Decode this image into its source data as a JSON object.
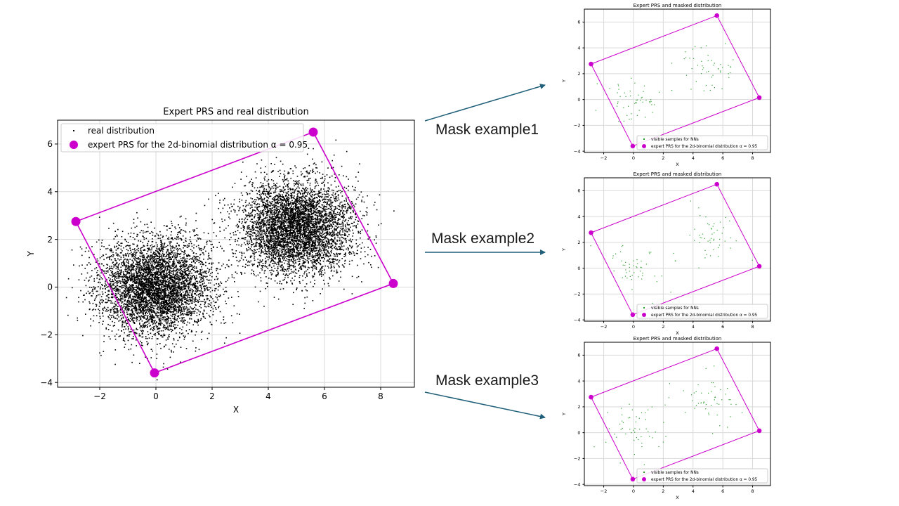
{
  "colors": {
    "polygon": "#cc00cc",
    "real_points": "#000000",
    "visible_points": "#2ca02c",
    "arrow": "#1f5f7a",
    "grid": "#d9d9d9"
  },
  "chart_data": [
    {
      "type": "scatter",
      "title": "Expert PRS and real distribution",
      "xlabel": "X",
      "ylabel": "Y",
      "xlim": [
        -3.5,
        9.2
      ],
      "ylim": [
        -4.2,
        7.0
      ],
      "xticks": [
        -2,
        0,
        2,
        4,
        6,
        8
      ],
      "yticks": [
        -4,
        -2,
        0,
        2,
        4,
        6
      ],
      "grid": true,
      "legend_position": "top-left",
      "legend": [
        {
          "label": "real distribution",
          "marker": "dot",
          "color": "#000000"
        },
        {
          "label": "expert PRS for the 2d-binomial distribution α = 0.95",
          "marker": "circle",
          "color": "#cc00cc"
        }
      ],
      "series": [
        {
          "name": "real distribution",
          "kind": "points",
          "clusters": [
            {
              "center": [
                0,
                0
              ],
              "sd": 1
            },
            {
              "center": [
                5,
                2.5
              ],
              "sd": 1
            }
          ],
          "count": 10000
        },
        {
          "name": "expert PRS for the 2d-binomial distribution α = 0.95",
          "kind": "polygon",
          "vertices": [
            [
              -2.85,
              2.75
            ],
            [
              5.6,
              6.5
            ],
            [
              8.45,
              0.15
            ],
            [
              -0.05,
              -3.6
            ]
          ]
        }
      ]
    },
    {
      "type": "scatter",
      "title": "Expert PRS and masked distribution",
      "xlabel": "X",
      "ylabel": "Y",
      "xlim": [
        -3.3,
        9.2
      ],
      "ylim": [
        -4.1,
        7.0
      ],
      "xticks": [
        -2,
        0,
        2,
        4,
        6,
        8
      ],
      "yticks": [
        -4,
        -2,
        0,
        2,
        4,
        6
      ],
      "grid": true,
      "legend_position": "bottom-right",
      "legend": [
        {
          "label": "visible samples for NNs",
          "marker": "dot",
          "color": "#2ca02c"
        },
        {
          "label": "expert PRS for the 2d-binomial distribution α = 0.95",
          "marker": "circle",
          "color": "#cc00cc"
        }
      ],
      "series": [
        {
          "name": "visible samples for NNs",
          "kind": "points",
          "clusters": [
            {
              "center": [
                0,
                0
              ],
              "sd": 1
            },
            {
              "center": [
                5,
                2.5
              ],
              "sd": 1
            }
          ],
          "count": 100
        },
        {
          "name": "expert PRS for the 2d-binomial distribution α = 0.95",
          "kind": "polygon",
          "vertices": [
            [
              -2.85,
              2.75
            ],
            [
              5.6,
              6.5
            ],
            [
              8.45,
              0.15
            ],
            [
              -0.05,
              -3.6
            ]
          ]
        }
      ]
    },
    {
      "type": "scatter",
      "title": "Expert PRS and masked distribution",
      "xlabel": "X",
      "ylabel": "Y",
      "xlim": [
        -3.3,
        9.2
      ],
      "ylim": [
        -4.1,
        7.0
      ],
      "xticks": [
        -2,
        0,
        2,
        4,
        6,
        8
      ],
      "yticks": [
        -4,
        -2,
        0,
        2,
        4,
        6
      ],
      "grid": true,
      "legend_position": "bottom-right",
      "legend": [
        {
          "label": "visible samples for NNs",
          "marker": "dot",
          "color": "#2ca02c"
        },
        {
          "label": "expert PRS for the 2d-binomial distribution α = 0.95",
          "marker": "circle",
          "color": "#cc00cc"
        }
      ],
      "series": [
        {
          "name": "visible samples for NNs",
          "kind": "points",
          "clusters": [
            {
              "center": [
                0,
                0
              ],
              "sd": 1
            },
            {
              "center": [
                5,
                2.5
              ],
              "sd": 1
            }
          ],
          "count": 100
        },
        {
          "name": "expert PRS for the 2d-binomial distribution α = 0.95",
          "kind": "polygon",
          "vertices": [
            [
              -2.85,
              2.75
            ],
            [
              5.6,
              6.5
            ],
            [
              8.45,
              0.15
            ],
            [
              -0.05,
              -3.6
            ]
          ]
        }
      ]
    },
    {
      "type": "scatter",
      "title": "Expert PRS and masked distribution",
      "xlabel": "X",
      "ylabel": "Y",
      "xlim": [
        -3.3,
        9.2
      ],
      "ylim": [
        -4.1,
        7.0
      ],
      "xticks": [
        -2,
        0,
        2,
        4,
        6,
        8
      ],
      "yticks": [
        -4,
        -2,
        0,
        2,
        4,
        6
      ],
      "grid": true,
      "legend_position": "bottom-right",
      "legend": [
        {
          "label": "visible samples for NNs",
          "marker": "dot",
          "color": "#2ca02c"
        },
        {
          "label": "expert PRS for the 2d-binomial distribution α = 0.95",
          "marker": "circle",
          "color": "#cc00cc"
        }
      ],
      "series": [
        {
          "name": "visible samples for NNs",
          "kind": "points",
          "clusters": [
            {
              "center": [
                0,
                0
              ],
              "sd": 1
            },
            {
              "center": [
                5,
                2.5
              ],
              "sd": 1
            }
          ],
          "count": 100
        },
        {
          "name": "expert PRS for the 2d-binomial distribution α = 0.95",
          "kind": "polygon",
          "vertices": [
            [
              -2.85,
              2.75
            ],
            [
              5.6,
              6.5
            ],
            [
              8.45,
              0.15
            ],
            [
              -0.05,
              -3.6
            ]
          ]
        }
      ]
    }
  ],
  "annotations": {
    "mask_labels": [
      "Mask example1",
      "Mask example2",
      "Mask example3"
    ]
  }
}
